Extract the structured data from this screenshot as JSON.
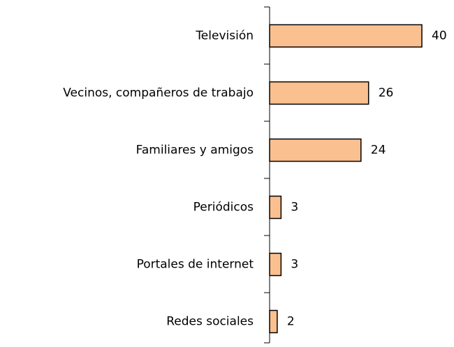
{
  "chart_data": {
    "type": "bar",
    "orientation": "horizontal",
    "categories": [
      "Televisión",
      "Vecinos, compañeros de trabajo",
      "Familiares y amigos",
      "Periódicos",
      "Portales de internet",
      "Redes sociales"
    ],
    "values": [
      40,
      26,
      24,
      3,
      3,
      2
    ],
    "color": "#fac090"
  }
}
